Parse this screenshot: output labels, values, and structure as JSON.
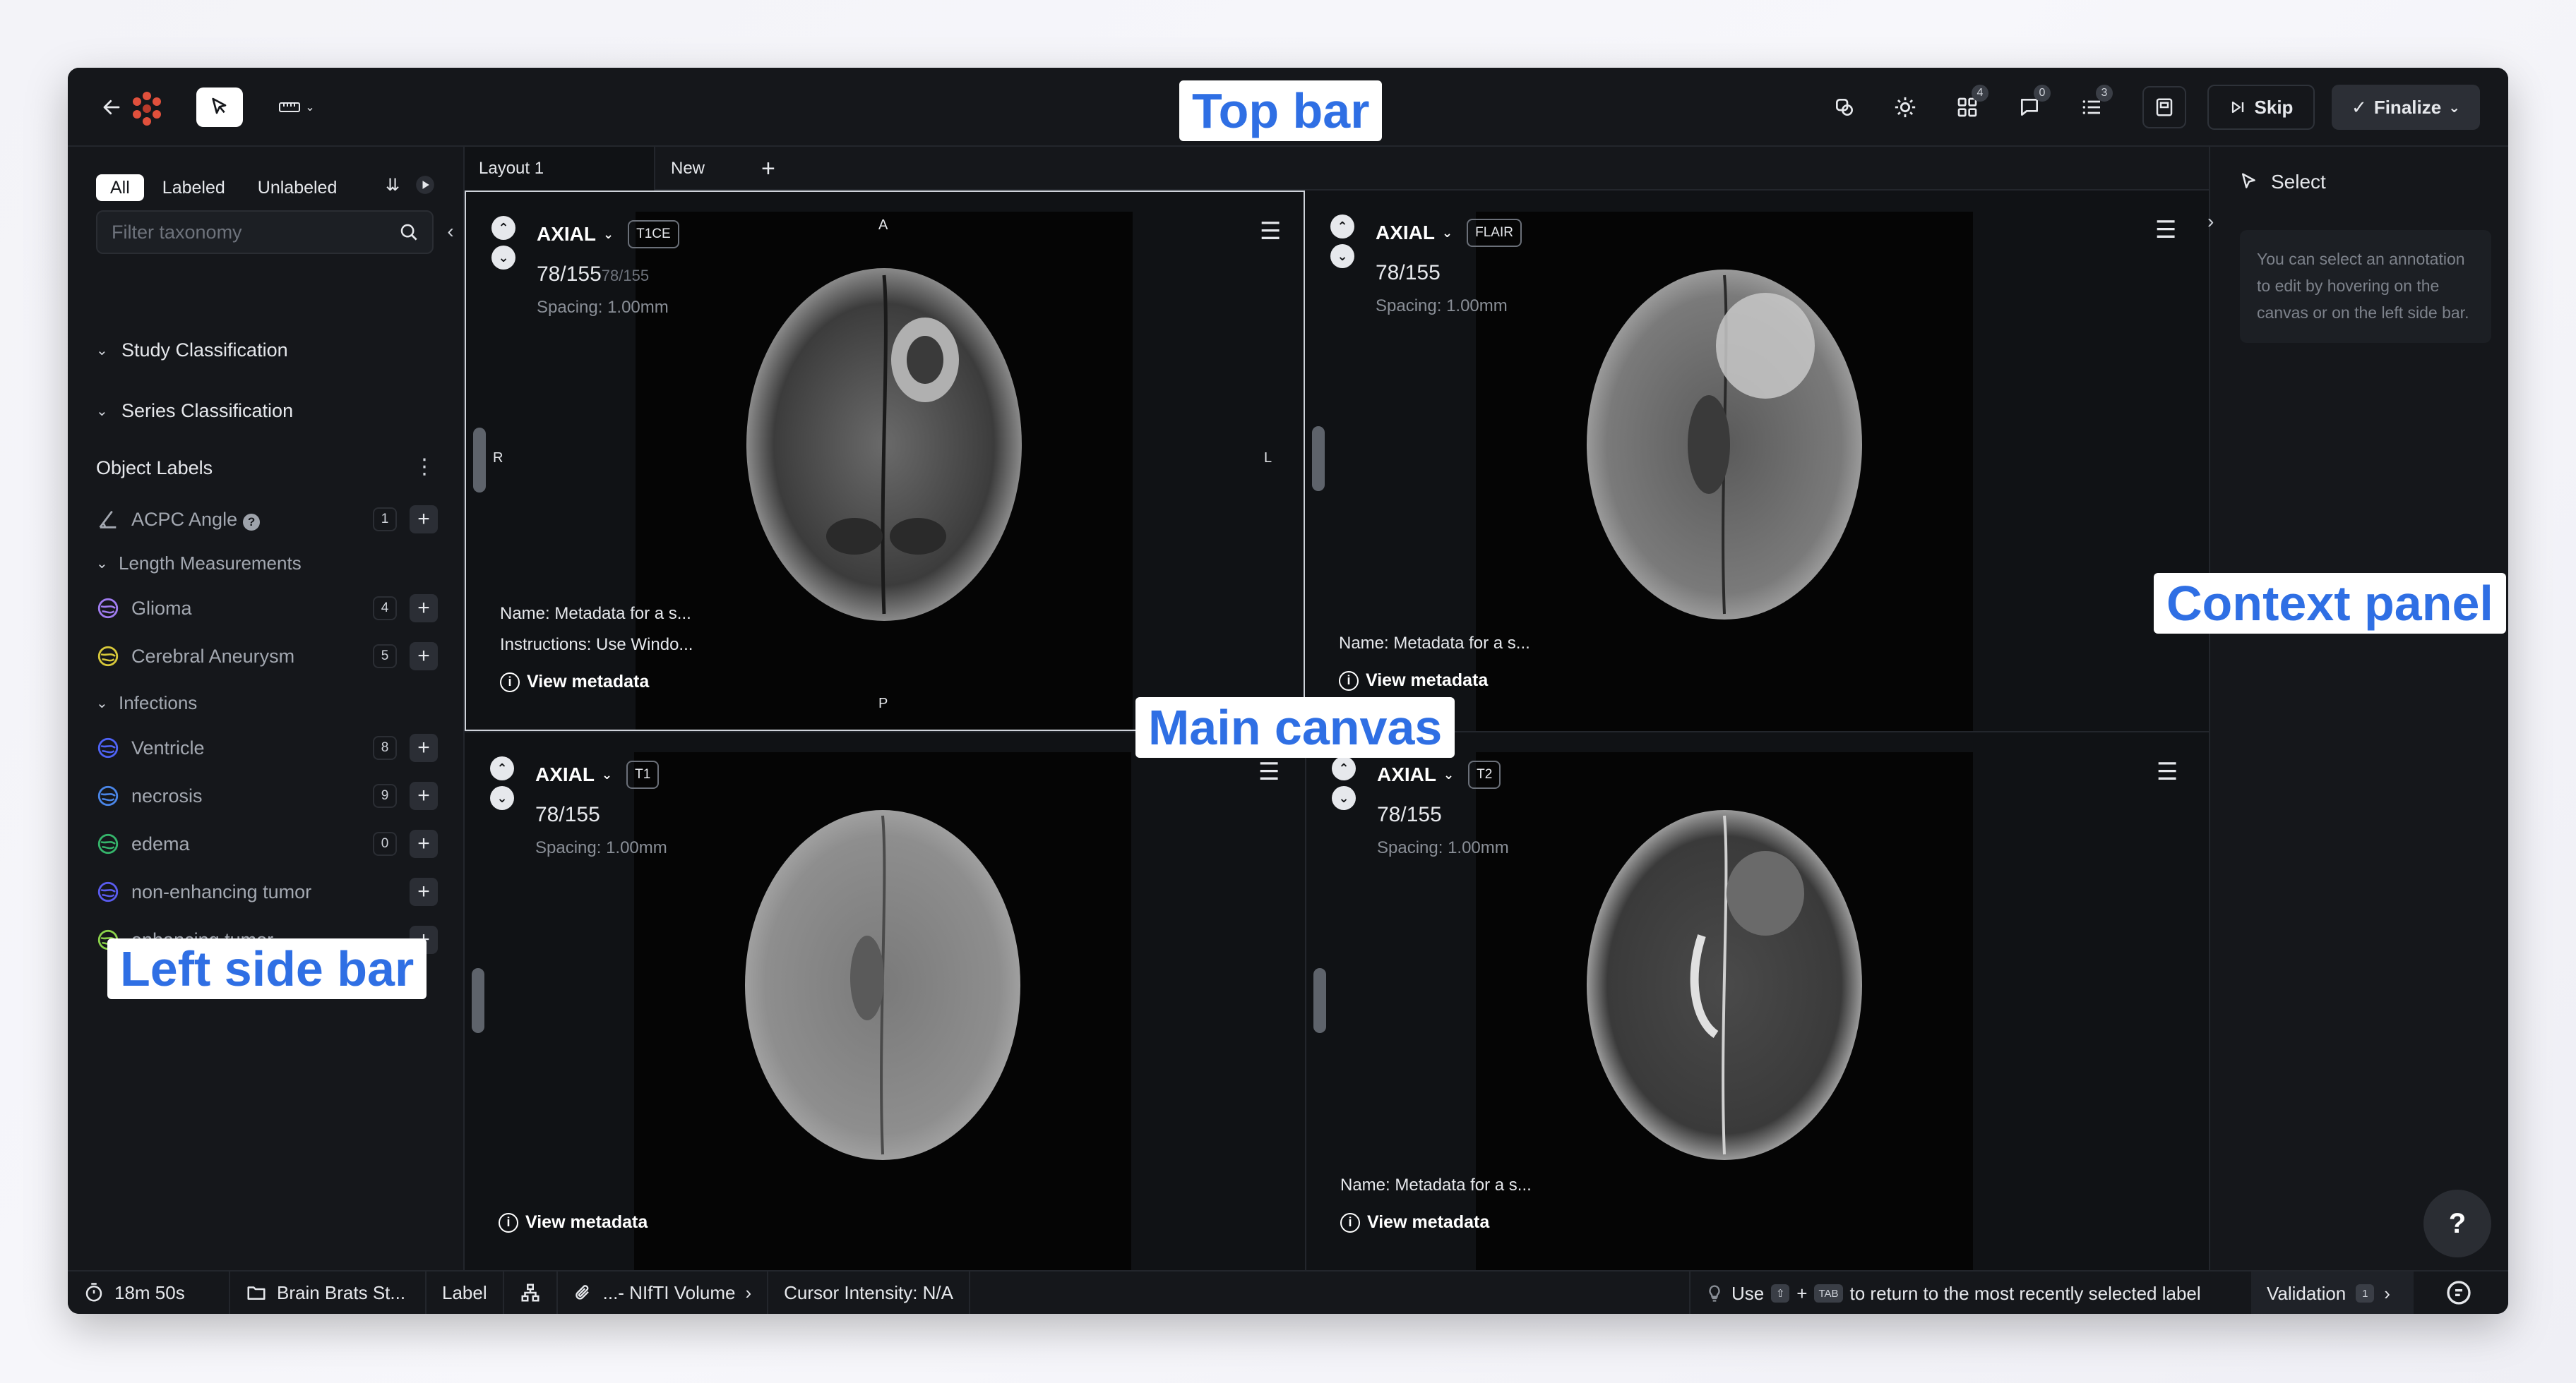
{
  "annotations": {
    "top_bar": "Top bar",
    "main_canvas": "Main canvas",
    "context_panel": "Context panel",
    "left_side_bar": "Left side bar"
  },
  "topbar": {
    "badges": {
      "layout": "4",
      "comments": "0",
      "list": "3"
    },
    "skip_label": "Skip",
    "finalize_label": "Finalize"
  },
  "sidebar": {
    "filter_tabs": [
      "All",
      "Labeled",
      "Unlabeled"
    ],
    "filter_placeholder": "Filter taxonomy",
    "sections": [
      "Study Classification",
      "Series Classification"
    ],
    "object_labels_title": "Object Labels",
    "items": [
      {
        "name": "ACPC Angle",
        "count": "1",
        "color": "#a3a8b1"
      },
      {
        "group": "Length Measurements"
      },
      {
        "name": "Glioma",
        "count": "4",
        "color": "#a07cf0"
      },
      {
        "name": "Cerebral Aneurysm",
        "count": "5",
        "color": "#d8c93a"
      },
      {
        "group": "Infections"
      },
      {
        "name": "Ventricle",
        "count": "8",
        "color": "#4f63f5"
      },
      {
        "name": "necrosis",
        "count": "9",
        "color": "#4a86e8"
      },
      {
        "name": "edema",
        "count": "0",
        "color": "#35b56b"
      },
      {
        "name": "non-enhancing tumor",
        "count": "",
        "color": "#5a5cf0"
      },
      {
        "name": "enhancing tumor",
        "count": "",
        "color": "#8bd34a"
      }
    ]
  },
  "tabs": {
    "layout": "Layout 1",
    "new": "New"
  },
  "viewports": [
    {
      "orientation": "AXIAL",
      "sequence": "T1CE",
      "slice": "78/155",
      "slice_sub": "78/155",
      "spacing": "Spacing: 1.00mm",
      "name_line": "Name: Metadata for a s...",
      "instr_line": "Instructions: Use Windo...",
      "view_meta": "View metadata",
      "orient_marks": {
        "top": "A",
        "bottom": "P",
        "left": "R",
        "right": "L"
      }
    },
    {
      "orientation": "AXIAL",
      "sequence": "FLAIR",
      "slice": "78/155",
      "spacing": "Spacing: 1.00mm",
      "name_line": "Name: Metadata for a s...",
      "view_meta": "View metadata"
    },
    {
      "orientation": "AXIAL",
      "sequence": "T1",
      "slice": "78/155",
      "spacing": "Spacing: 1.00mm",
      "view_meta": "View metadata"
    },
    {
      "orientation": "AXIAL",
      "sequence": "T2",
      "slice": "78/155",
      "spacing": "Spacing: 1.00mm",
      "name_line": "Name: Metadata for a s...",
      "view_meta": "View metadata"
    }
  ],
  "context_panel": {
    "title": "Select",
    "info": "You can select an annotation to edit by hovering on the canvas or on the left side bar."
  },
  "status": {
    "timer": "18m 50s",
    "project": "Brain Brats St...",
    "mode": "Label",
    "volume": "...- NIfTI Volume",
    "cursor": "Cursor Intensity: N/A",
    "hint_use": "Use",
    "hint_plus": "+",
    "hint_key_shift": "⇧",
    "hint_key_tab": "TAB",
    "hint_rest": "to return to the most recently selected label",
    "validation": "Validation",
    "validation_count": "1"
  },
  "help": "?",
  "colors": {
    "accent": "#2f6fe4",
    "bg": "#15171b",
    "canvas": "#101215"
  }
}
